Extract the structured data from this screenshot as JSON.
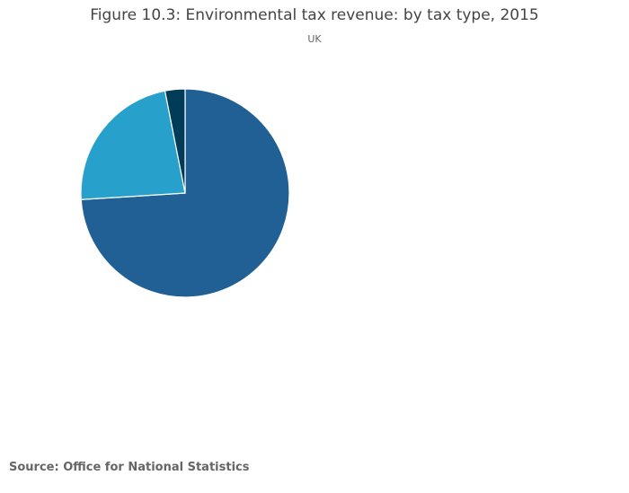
{
  "chart_data": {
    "type": "pie",
    "title": "Figure 10.3: Environmental tax revenue: by tax type, 2015",
    "subtitle": "UK",
    "start": "top",
    "direction": "clockwise",
    "legend": "none",
    "slices": [
      {
        "value": 74.0,
        "color": "#206095"
      },
      {
        "value": 22.9,
        "color": "#27a0cc"
      },
      {
        "value": 3.1,
        "color": "#003c57"
      }
    ]
  },
  "source": "Source: Office for National Statistics"
}
